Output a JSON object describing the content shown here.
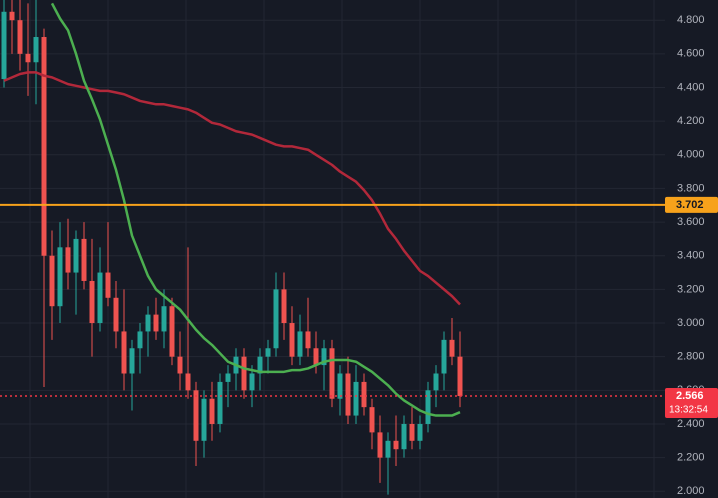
{
  "chart_data": {
    "type": "candlestick",
    "ylim": [
      1.96,
      4.92
    ],
    "yticks": [
      {
        "value": 2.0,
        "label": "2.000"
      },
      {
        "value": 2.2,
        "label": "2.200"
      },
      {
        "value": 2.4,
        "label": "2.400"
      },
      {
        "value": 2.6,
        "label": "2.600"
      },
      {
        "value": 2.8,
        "label": "2.800"
      },
      {
        "value": 3.0,
        "label": "3.000"
      },
      {
        "value": 3.2,
        "label": "3.200"
      },
      {
        "value": 3.4,
        "label": "3.400"
      },
      {
        "value": 3.6,
        "label": "3.600"
      },
      {
        "value": 3.8,
        "label": "3.800"
      },
      {
        "value": 4.0,
        "label": "4.000"
      },
      {
        "value": 4.2,
        "label": "4.200"
      },
      {
        "value": 4.4,
        "label": "4.400"
      },
      {
        "value": 4.6,
        "label": "4.600"
      },
      {
        "value": 4.8,
        "label": "4.800"
      }
    ],
    "grid": true,
    "up_color": "#26a69a",
    "down_color": "#ef5350",
    "open": [
      4.45,
      4.85,
      4.8,
      4.6,
      4.55,
      4.7,
      3.4,
      3.1,
      3.45,
      3.3,
      3.5,
      3.25,
      3.0,
      3.3,
      3.15,
      2.95,
      2.7,
      2.85,
      2.95,
      3.05,
      2.95,
      3.1,
      2.8,
      2.7,
      2.6,
      2.3,
      2.55,
      2.4,
      2.65,
      2.7,
      2.8,
      2.6,
      2.7,
      2.8,
      2.85,
      3.2,
      3.0,
      2.8,
      2.95,
      2.85,
      2.75,
      2.85,
      2.55,
      2.7,
      2.45,
      2.65,
      2.5,
      2.35,
      2.2,
      2.3,
      2.25,
      2.4,
      2.3,
      2.4,
      2.6,
      2.7,
      2.9,
      2.8
    ],
    "high": [
      4.92,
      4.92,
      4.92,
      4.9,
      4.92,
      4.75,
      3.55,
      3.6,
      3.62,
      3.55,
      3.6,
      3.5,
      3.45,
      3.6,
      3.25,
      3.2,
      2.9,
      3.0,
      3.1,
      3.15,
      3.2,
      3.15,
      2.95,
      3.45,
      2.65,
      2.6,
      2.65,
      2.7,
      2.75,
      2.85,
      2.85,
      2.75,
      2.85,
      2.9,
      3.3,
      3.3,
      3.1,
      3.05,
      3.15,
      2.95,
      2.9,
      2.9,
      2.75,
      2.8,
      2.75,
      2.7,
      2.55,
      2.45,
      2.35,
      2.45,
      2.45,
      2.5,
      2.45,
      2.65,
      2.75,
      2.95,
      3.03,
      2.95
    ],
    "low": [
      4.4,
      4.6,
      4.5,
      4.35,
      4.3,
      2.62,
      2.9,
      3.0,
      3.2,
      3.05,
      3.2,
      2.8,
      2.95,
      3.1,
      2.85,
      2.6,
      2.48,
      2.7,
      2.8,
      2.9,
      2.85,
      2.75,
      2.6,
      2.55,
      2.15,
      2.2,
      2.3,
      2.35,
      2.5,
      2.6,
      2.55,
      2.5,
      2.6,
      2.7,
      2.8,
      2.9,
      2.75,
      2.75,
      2.8,
      2.7,
      2.6,
      2.5,
      2.45,
      2.4,
      2.4,
      2.45,
      2.25,
      2.05,
      1.98,
      2.15,
      2.2,
      2.25,
      2.25,
      2.35,
      2.5,
      2.6,
      2.75,
      2.5
    ],
    "close": [
      4.85,
      4.8,
      4.6,
      4.55,
      4.7,
      3.4,
      3.1,
      3.45,
      3.3,
      3.5,
      3.25,
      3.0,
      3.3,
      3.15,
      2.95,
      2.7,
      2.85,
      2.95,
      3.05,
      2.95,
      3.1,
      2.8,
      2.7,
      2.6,
      2.3,
      2.55,
      2.4,
      2.65,
      2.7,
      2.8,
      2.6,
      2.7,
      2.8,
      2.85,
      3.2,
      3.0,
      2.8,
      2.95,
      2.85,
      2.75,
      2.85,
      2.55,
      2.7,
      2.45,
      2.65,
      2.5,
      2.35,
      2.2,
      2.3,
      2.25,
      2.4,
      2.3,
      2.4,
      2.6,
      2.7,
      2.9,
      2.8,
      2.566
    ],
    "ma": [
      {
        "color": "#b2283a",
        "values": [
          4.44,
          4.46,
          4.48,
          4.49,
          4.49,
          4.47,
          4.46,
          4.44,
          4.42,
          4.41,
          4.4,
          4.39,
          4.38,
          4.38,
          4.37,
          4.36,
          4.34,
          4.32,
          4.31,
          4.3,
          4.3,
          4.29,
          4.28,
          4.27,
          4.25,
          4.22,
          4.19,
          4.18,
          4.16,
          4.14,
          4.13,
          4.12,
          4.1,
          4.08,
          4.06,
          4.05,
          4.05,
          4.04,
          4.03,
          4.0,
          3.97,
          3.94,
          3.9,
          3.87,
          3.84,
          3.79,
          3.73,
          3.65,
          3.56,
          3.5,
          3.43,
          3.37,
          3.31,
          3.28,
          3.24,
          3.2,
          3.16,
          3.11
        ]
      },
      {
        "color": "#4caf50",
        "values": [
          null,
          null,
          null,
          null,
          null,
          null,
          4.9,
          4.81,
          4.74,
          4.6,
          4.44,
          4.33,
          4.21,
          4.06,
          3.91,
          3.73,
          3.52,
          3.4,
          3.28,
          3.2,
          3.16,
          3.12,
          3.08,
          3.02,
          2.96,
          2.91,
          2.87,
          2.82,
          2.77,
          2.75,
          2.73,
          2.72,
          2.71,
          2.71,
          2.71,
          2.71,
          2.72,
          2.72,
          2.73,
          2.75,
          2.77,
          2.78,
          2.78,
          2.78,
          2.77,
          2.74,
          2.71,
          2.67,
          2.63,
          2.58,
          2.54,
          2.51,
          2.48,
          2.46,
          2.45,
          2.45,
          2.45,
          2.47
        ]
      }
    ],
    "hlines": [
      {
        "value": 3.702,
        "color": "#f7a21b",
        "dashed": false
      },
      {
        "value": 2.566,
        "color": "#f23645",
        "dashed": true,
        "countdown": "13:32:54"
      }
    ]
  }
}
